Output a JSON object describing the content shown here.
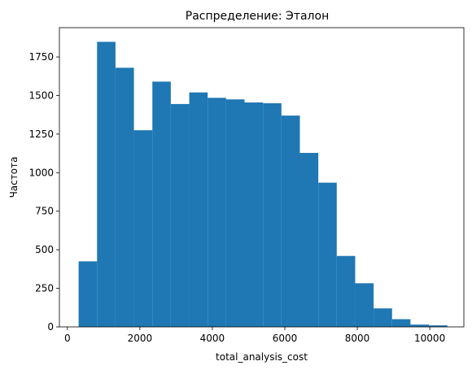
{
  "chart_data": {
    "type": "bar",
    "title": "Распределение: Эталон",
    "xlabel": "total_analysis_cost",
    "ylabel": "Частота",
    "xlim": [
      -220,
      10940
    ],
    "ylim": [
      0,
      1940
    ],
    "bin_edges": [
      310,
      818.75,
      1327.5,
      1836.25,
      2345,
      2853.75,
      3362.5,
      3871.25,
      4380,
      4888.75,
      5397.5,
      5906.25,
      6415,
      6923.75,
      7432.5,
      7941.25,
      8450,
      8958.75,
      9467.5,
      9976.25,
      10485
    ],
    "values": [
      425,
      1848,
      1680,
      1275,
      1590,
      1445,
      1520,
      1485,
      1475,
      1455,
      1450,
      1370,
      1128,
      935,
      460,
      283,
      120,
      50,
      15,
      10
    ],
    "x_ticks": [
      0,
      2000,
      4000,
      6000,
      8000,
      10000
    ],
    "y_ticks": [
      0,
      250,
      500,
      750,
      1000,
      1250,
      1500,
      1750
    ],
    "bar_color": "#1f77b4",
    "grid": false,
    "legend": "none"
  }
}
